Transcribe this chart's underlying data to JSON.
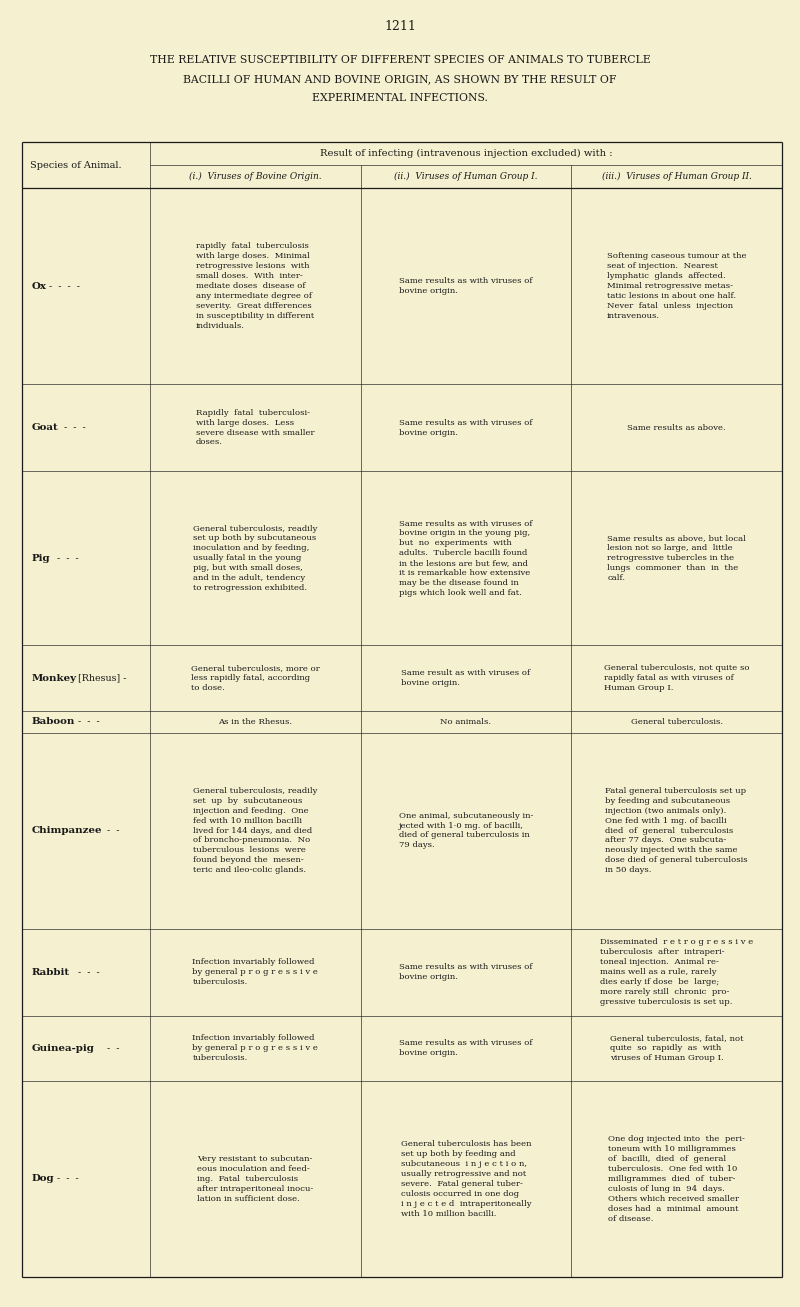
{
  "page_number": "1211",
  "title_lines": [
    "THE RELATIVE SUSCEPTIBILITY OF DIFFERENT SPECIES OF ANIMALS TO TUBERCLE",
    "BACILLI OF HUMAN AND BOVINE ORIGIN, AS SHOWN BY THE RESULT OF",
    "EXPERIMENTAL INFECTIONS."
  ],
  "col_header_main": "Result of infecting (intravenous injection excluded) with :",
  "col_header_species": "Species of Animal.",
  "col_headers": [
    "(i.)  Viruses of Bovine Origin.",
    "(ii.)  Viruses of Human Group I.",
    "(iii.)  Viruses of Human Group II."
  ],
  "background_color": "#f5f0d0",
  "text_color": "#1a1a1a",
  "rows": [
    {
      "species_bold": "Ox",
      "species_rest": " -  -  -  -",
      "col1": "rapidly  fatal  tuberculosis\nwith large doses.  Minimal\nretrogressive lesions  with\nsmall doses.  With  inter-\nmediate doses  disease of\nany intermediate degree of\nseverity.  Great differences\nin susceptibility in different\nindividuals.",
      "col2": "Same results as with viruses of\nbovine origin.",
      "col3": "Softening caseous tumour at the\nseat of injection.  Nearest\nlymphatic  glands  affected.\nMinimal retrogressive metas-\ntatic lesions in about one half.\nNever  fatal  unless  injection\nintravenous."
    },
    {
      "species_bold": "Goat",
      "species_rest": " -  -  -",
      "col1": "Rapidly  fatal  tuberculosi-\nwith large doses.  Less\nsevere disease with smaller\ndoses.",
      "col2": "Same results as with viruses of\nbovine origin.",
      "col3": "Same results as above."
    },
    {
      "species_bold": "Pig",
      "species_rest": " -  -  -",
      "col1": "General tuberculosis, readily\nset up both by subcutaneous\ninoculation and by feeding,\nusually fatal in the young\npig, but with small doses,\nand in the adult, tendency\nto retrogression exhibited.",
      "col2": "Same results as with viruses of\nbovine origin in the young pig,\nbut  no  experiments  with\nadults.  Tubercle bacilli found\nin the lesions are but few, and\nit is remarkable how extensive\nmay be the disease found in\npigs which look well and fat.",
      "col3": "Same results as above, but local\nlesion not so large, and  little\nretrogressive tubercles in the\nlungs  commoner  than  in  the\ncalf."
    },
    {
      "species_bold": "Monkey",
      "species_rest": " [Rhesus] -",
      "col1": "General tuberculosis, more or\nless rapidly fatal, according\nto dose.",
      "col2": "Same result as with viruses of\nbovine origin.",
      "col3": "General tuberculosis, not quite so\nrapidly fatal as with viruses of\nHuman Group I."
    },
    {
      "species_bold": "Baboon",
      "species_rest": " -  -  -",
      "col1": "As in the Rhesus.",
      "col2": "No animals.",
      "col3": "General tuberculosis."
    },
    {
      "species_bold": "Chimpanzee",
      "species_rest": " -  -",
      "col1": "General tuberculosis, readily\nset  up  by  subcutaneous\ninjection and feeding.  One\nfed with 10 million bacilli\nlived for 144 days, and died\nof broncho-pneumonia.  No\ntuberculous  lesions  were\nfound beyond the  mesen-\nteric and ileo-colic glands.",
      "col2": "One animal, subcutaneously in-\njected with 1·0 mg. of bacilli,\ndied of general tuberculosis in\n79 days.",
      "col3": "Fatal general tuberculosis set up\nby feeding and subcutaneous\ninjection (two animals only).\nOne fed with 1 mg. of bacilli\ndied  of  general  tuberculosis\nafter 77 days.  One subcuta-\nneously injected with the same\ndose died of general tuberculosis\nin 50 days."
    },
    {
      "species_bold": "Rabbit",
      "species_rest": " -  -  -",
      "col1": "Infection invariably followed\nby general p r o g r e s s i v e\ntuberculosis.",
      "col2": "Same results as with viruses of\nbovine origin.",
      "col3": "Disseminated  r e t r o g r e s s i v e\ntuberculosis  after  intraperi-\ntoneal injection.  Animal re-\nmains well as a rule, rarely\ndies early if dose  be  large;\nmore rarely still  chronic  pro-\ngressive tuberculosis is set up."
    },
    {
      "species_bold": "Guinea-pig",
      "species_rest": " -  -",
      "col1": "Infection invariably followed\nby general p r o g r e s s i v e\ntuberculosis.",
      "col2": "Same results as with viruses of\nbovine origin.",
      "col3": "General tuberculosis, fatal, not\nquite  so  rapidly  as  with\nviruses of Human Group I."
    },
    {
      "species_bold": "Dog",
      "species_rest": " -  -  -",
      "col1": "Very resistant to subcutan-\neous inoculation and feed-\ning.  Fatal  tuberculosis\nafter intraperitoneal inocu-\nlation in sufficient dose.",
      "col2": "General tuberculosis has been\nset up both by feeding and\nsubcutaneous  i n j e c t i o n,\nusually retrogressive and not\nsevere.  Fatal general tuber-\nculosis occurred in one dog\ni n j e c t e d  intraperitoneally\nwith 10 million bacilli.",
      "col3": "One dog injected into  the  peri-\ntoneum with 10 milligrammes\nof  bacilli,  died  of  general\ntuberculosis.  One fed with 10\nmilligrammes  died  of  tuber-\nculosis of lung in  94  days.\nOthers which received smaller\ndoses had  a  minimal  amount\nof disease."
    }
  ],
  "row_heights_relative": [
    9,
    4,
    8,
    3,
    1,
    9,
    4,
    3,
    9
  ]
}
